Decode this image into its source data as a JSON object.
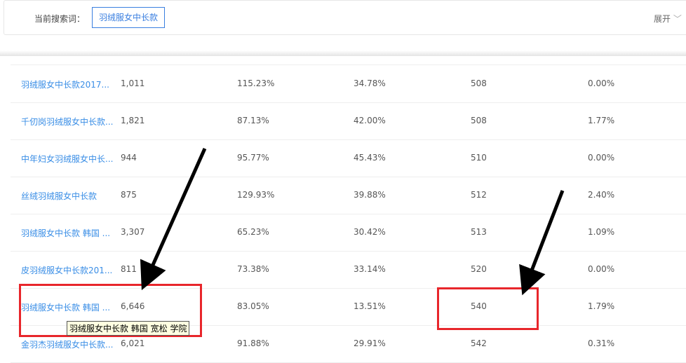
{
  "search": {
    "label": "当前搜索词：",
    "keyword": "羽绒服女中长款",
    "expand": "展开"
  },
  "rows": [
    [
      "羽绒服女中长款2017...",
      "1,011",
      "115.23%",
      "34.78%",
      "508",
      "0.00%"
    ],
    [
      "千仞岗羽绒服女中长款...",
      "1,821",
      "87.13%",
      "42.00%",
      "508",
      "1.77%"
    ],
    [
      "中年妇女羽绒服女中长...",
      "944",
      "95.77%",
      "45.43%",
      "510",
      "0.00%"
    ],
    [
      "丝绒羽绒服女中长款",
      "875",
      "129.93%",
      "39.88%",
      "512",
      "2.40%"
    ],
    [
      "羽绒服女中长款 韩国 ...",
      "3,307",
      "65.23%",
      "30.42%",
      "513",
      "1.09%"
    ],
    [
      "皮羽绒服女中长款201...",
      "811",
      "73.38%",
      "33.14%",
      "520",
      "0.00%"
    ],
    [
      "羽绒服女中长款 韩国 ...",
      "6,646",
      "83.05%",
      "13.51%",
      "540",
      "1.79%"
    ],
    [
      "金羽杰羽绒服女中长款...",
      "6,021",
      "91.88%",
      "29.91%",
      "542",
      "0.31%"
    ]
  ],
  "tooltip": "羽绒服女中长款 韩国 宽松 学院",
  "colors": {
    "accent": "#3a7fe0",
    "annotation": "#e8262b"
  }
}
